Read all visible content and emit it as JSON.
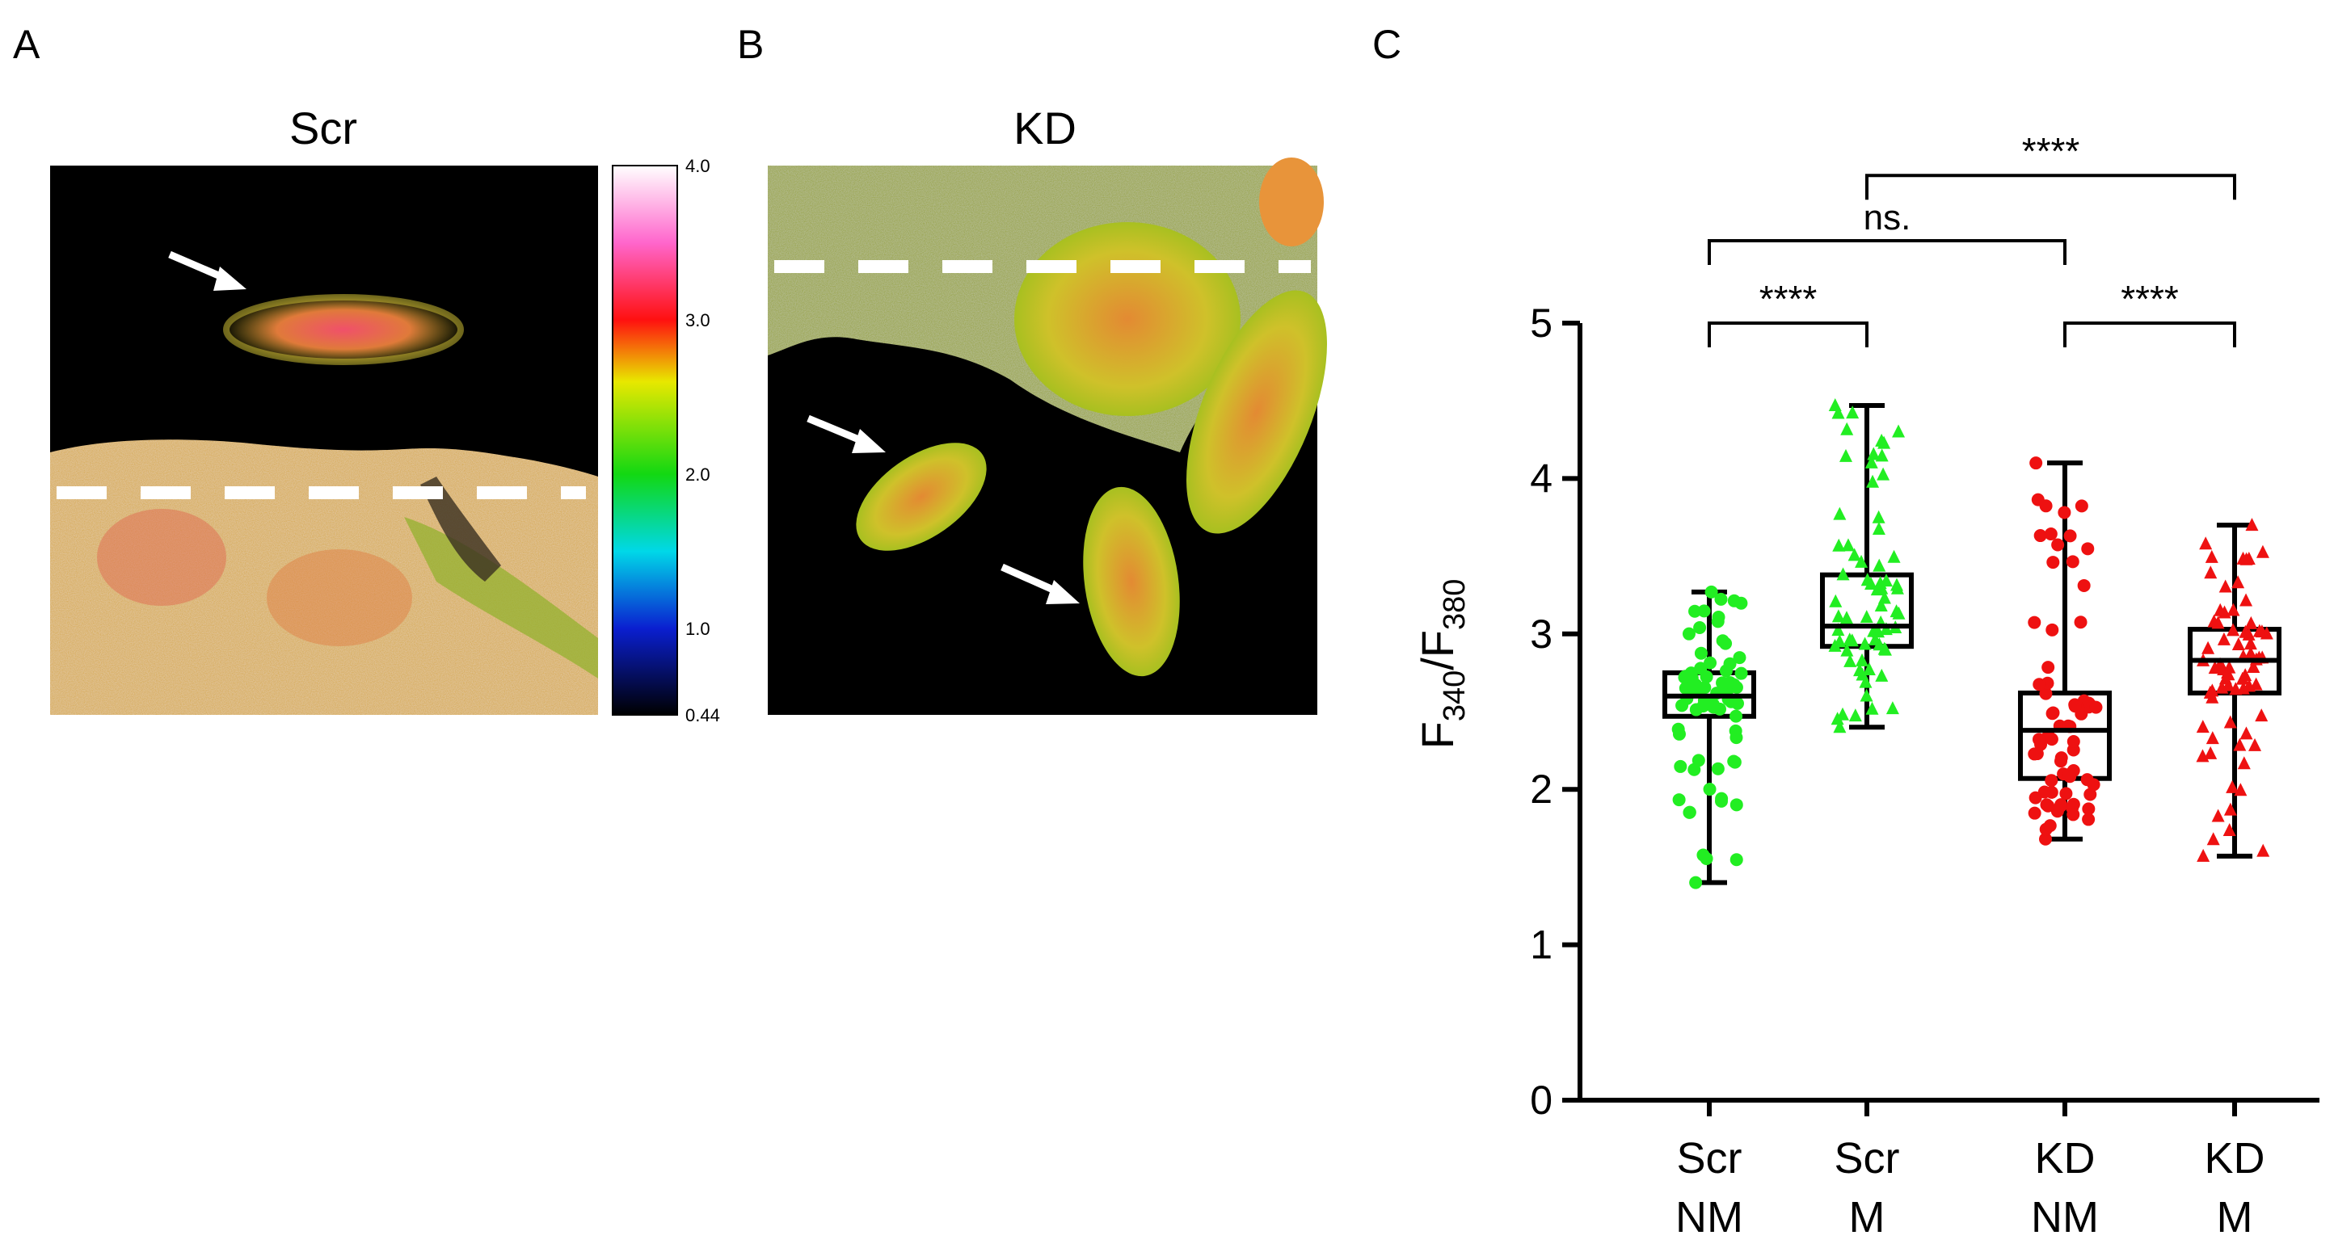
{
  "panels": {
    "A": {
      "label": "A",
      "title": "Scr"
    },
    "B": {
      "label": "B",
      "title": "KD"
    },
    "C": {
      "label": "C"
    }
  },
  "colorbar": {
    "ticks": [
      "4.0",
      "3.0",
      "2.0",
      "1.0",
      "0.44"
    ],
    "tick_values": [
      4.0,
      3.0,
      2.0,
      1.0,
      0.44
    ],
    "range": [
      0.44,
      4.0
    ],
    "stops": [
      {
        "v": 0.44,
        "c": "#000000"
      },
      {
        "v": 1.0,
        "c": "#0a1fd0"
      },
      {
        "v": 1.5,
        "c": "#00d8e8"
      },
      {
        "v": 2.0,
        "c": "#12d812"
      },
      {
        "v": 2.6,
        "c": "#e8e800"
      },
      {
        "v": 3.0,
        "c": "#ff1010"
      },
      {
        "v": 3.5,
        "c": "#ff66cc"
      },
      {
        "v": 4.0,
        "c": "#ffffff"
      }
    ]
  },
  "colors": {
    "scr": "#22ee22",
    "kd": "#ee1111",
    "image_bg": "#000000",
    "cell_orange": "#e8a23a",
    "cell_yellow": "#cfcf2a",
    "cell_red": "#e25a3a"
  },
  "chart_data": {
    "type": "box",
    "ylabel": "F340/F380",
    "ylabel_main": "F",
    "ylabel_sub1": "340",
    "ylabel_slash": "/F",
    "ylabel_sub2": "380",
    "ylim": [
      0,
      5
    ],
    "yticks": [
      0,
      1,
      2,
      3,
      4,
      5
    ],
    "ytick_labels": [
      "0",
      "1",
      "2",
      "3",
      "4",
      "5"
    ],
    "groups": [
      {
        "line1": "Scr",
        "line2": "NM",
        "marker": "circle",
        "color": "#22ee22",
        "min": 1.4,
        "q1": 2.47,
        "median": 2.6,
        "q3": 2.75,
        "max": 3.27
      },
      {
        "line1": "Scr",
        "line2": "M",
        "marker": "triangle",
        "color": "#22ee22",
        "min": 2.4,
        "q1": 2.92,
        "median": 3.05,
        "q3": 3.38,
        "max": 4.47
      },
      {
        "line1": "KD",
        "line2": "NM",
        "marker": "circle",
        "color": "#ee1111",
        "min": 1.68,
        "q1": 2.07,
        "median": 2.38,
        "q3": 2.62,
        "max": 4.1
      },
      {
        "line1": "KD",
        "line2": "M",
        "marker": "triangle",
        "color": "#ee1111",
        "min": 1.57,
        "q1": 2.62,
        "median": 2.83,
        "q3": 3.03,
        "max": 3.7
      }
    ],
    "significance": [
      {
        "from": 0,
        "to": 1,
        "label": "****",
        "y": 5.0
      },
      {
        "from": 2,
        "to": 3,
        "label": "****",
        "y": 5.0
      },
      {
        "from": 0,
        "to": 2,
        "label": "ns.",
        "y": 5.53
      },
      {
        "from": 1,
        "to": 3,
        "label": "****",
        "y": 5.95
      }
    ]
  }
}
